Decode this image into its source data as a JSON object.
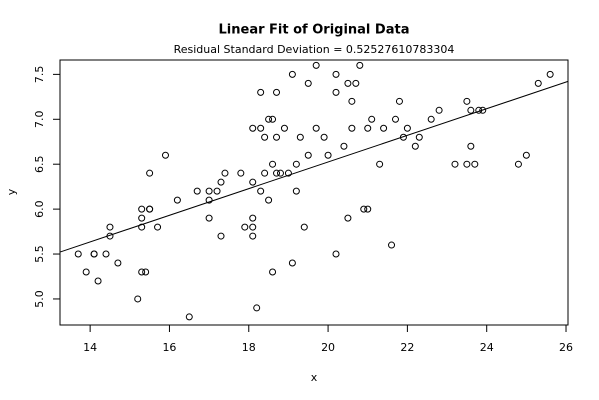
{
  "chart_data": {
    "type": "scatter",
    "title": "Linear Fit of Original Data",
    "subtitle": "Residual Standard Deviation =  0.52527610783304",
    "x_label": "x",
    "y_label": "y",
    "xlim": [
      13.24,
      26.05
    ],
    "ylim": [
      4.71,
      7.66
    ],
    "xticks": [
      14,
      16,
      18,
      20,
      22,
      24,
      26
    ],
    "yticks": [
      {
        "value": 5,
        "label": "5.0"
      },
      5.5,
      {
        "value": 6,
        "label": "6.0"
      },
      6.5,
      {
        "value": 7,
        "label": "7.0"
      },
      7.5
    ],
    "color": "#000000",
    "points": {
      "x": [
        13.7,
        13.9,
        14.1,
        14.1,
        14.2,
        14.4,
        14.5,
        14.5,
        14.7,
        15.2,
        15.3,
        15.3,
        15.3,
        15.3,
        15.4,
        15.5,
        15.5,
        15.5,
        15.7,
        15.9,
        16.2,
        16.5,
        16.7,
        17.0,
        17.0,
        17.0,
        17.2,
        17.3,
        17.3,
        17.4,
        17.8,
        17.9,
        18.1,
        18.1,
        18.1,
        18.1,
        18.1,
        18.2,
        18.3,
        18.3,
        18.3,
        18.4,
        18.4,
        18.5,
        18.5,
        18.6,
        18.6,
        18.6,
        18.7,
        18.7,
        18.7,
        18.8,
        18.9,
        19.0,
        19.1,
        19.1,
        19.2,
        19.2,
        19.3,
        19.4,
        19.5,
        19.5,
        19.7,
        19.7,
        19.9,
        20.0,
        20.2,
        20.2,
        20.2,
        20.4,
        20.5,
        20.5,
        20.6,
        20.6,
        20.7,
        20.8,
        20.9,
        21.0,
        21.0,
        21.1,
        21.3,
        21.4,
        21.6,
        21.7,
        21.8,
        21.9,
        22.0,
        22.2,
        22.3,
        22.6,
        22.8,
        23.2,
        23.5,
        23.5,
        23.6,
        23.6,
        23.7,
        23.8,
        23.9,
        24.8,
        25.0,
        25.3,
        25.6
      ],
      "y": [
        5.5,
        5.3,
        5.5,
        5.5,
        5.2,
        5.5,
        5.8,
        5.7,
        5.4,
        5.0,
        6.0,
        5.9,
        5.8,
        5.3,
        5.3,
        6.4,
        6.0,
        6.0,
        5.8,
        6.6,
        6.1,
        4.8,
        6.2,
        6.2,
        6.1,
        5.9,
        6.2,
        6.3,
        5.7,
        6.4,
        6.4,
        5.8,
        6.3,
        6.9,
        5.9,
        5.8,
        5.7,
        4.9,
        6.2,
        6.9,
        7.3,
        6.8,
        6.4,
        6.1,
        7.0,
        7.0,
        6.5,
        5.3,
        6.8,
        7.3,
        6.4,
        6.4,
        6.9,
        6.4,
        7.5,
        5.4,
        6.2,
        6.5,
        6.8,
        5.8,
        7.4,
        6.6,
        7.6,
        6.9,
        6.8,
        6.6,
        7.5,
        7.3,
        5.5,
        6.7,
        7.4,
        5.9,
        6.9,
        7.2,
        7.4,
        7.6,
        6.0,
        6.0,
        6.9,
        7.0,
        6.5,
        6.9,
        5.6,
        7.0,
        7.2,
        6.8,
        6.9,
        6.7,
        6.8,
        7.0,
        7.1,
        6.5,
        7.2,
        6.5,
        7.1,
        6.7,
        6.5,
        7.1,
        7.1,
        6.5,
        6.6,
        7.4,
        7.5
      ]
    },
    "fit_line": {
      "x": [
        13.24,
        26.05
      ],
      "y": [
        5.522,
        7.422
      ]
    }
  }
}
